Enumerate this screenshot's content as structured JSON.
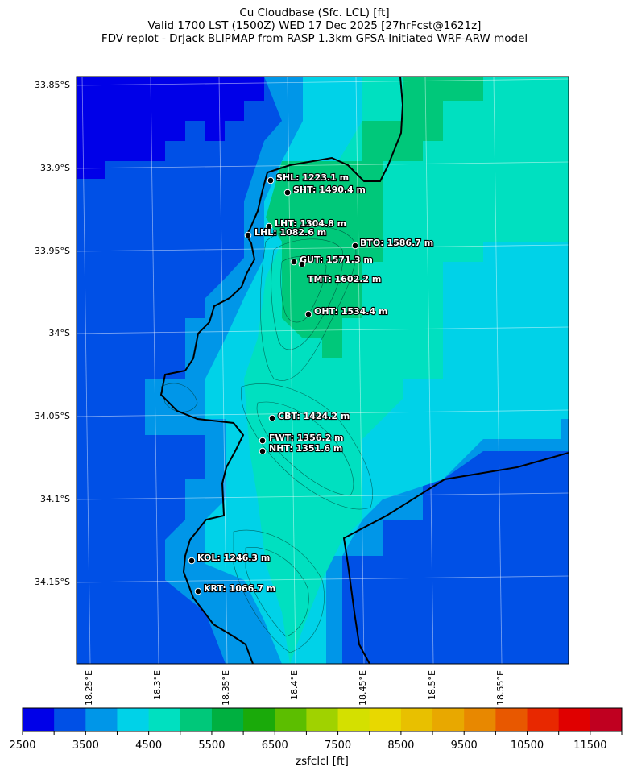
{
  "title": {
    "line1": "Cu Cloudbase (Sfc. LCL) [ft]",
    "line2": "Valid 1700 LST (1500Z) WED 17 Dec 2025 [27hrFcst@1621z]",
    "line3": "FDV replot - DrJack BLIPMAP from RASP 1.3km GFSA-Initiated WRF-ARW model"
  },
  "map": {
    "lat_ticks": [
      "33.85°S",
      "33.9°S",
      "33.95°S",
      "34°S",
      "34.05°S",
      "34.1°S",
      "34.15°S"
    ],
    "lon_ticks": [
      "18.25°E",
      "18.3°E",
      "18.35°E",
      "18.4°E",
      "18.45°E",
      "18.5°E",
      "18.55°E"
    ],
    "stations": [
      {
        "label": "SHL: 1223.1 m"
      },
      {
        "label": "SHT: 1490.4 m"
      },
      {
        "label": "LHT: 1304.8 m"
      },
      {
        "label": "LHL: 1082.6 m"
      },
      {
        "label": "BTO: 1586.7 m"
      },
      {
        "label": "GUT: 1571.3 m"
      },
      {
        "label": "TMT: 1602.2 m"
      },
      {
        "label": "OHT: 1534.4 m"
      },
      {
        "label": "CBT: 1424.2 m"
      },
      {
        "label": "FWT: 1356.2 m"
      },
      {
        "label": "NHT: 1351.6 m"
      },
      {
        "label": "KOL: 1246.3 m"
      },
      {
        "label": "KRT: 1066.7 m"
      }
    ]
  },
  "colorbar": {
    "label": "zsfclcl [ft]",
    "min": 2500,
    "max": 12000,
    "step": 500,
    "tick_labels": [
      "2500",
      "3500",
      "4500",
      "5500",
      "6500",
      "7500",
      "8500",
      "9500",
      "10500",
      "11500"
    ],
    "colors": [
      "#0000e8",
      "#0050e6",
      "#0096e8",
      "#00d2e8",
      "#00e0c0",
      "#00c87a",
      "#00b040",
      "#1aaa0a",
      "#5cbe00",
      "#a0d200",
      "#d4e000",
      "#e8d800",
      "#e8c000",
      "#e8a800",
      "#e88800",
      "#e85800",
      "#e82800",
      "#e00000",
      "#c00020"
    ]
  }
}
